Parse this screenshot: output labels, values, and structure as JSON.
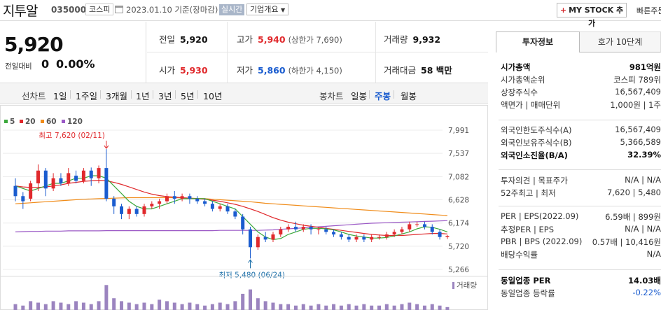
{
  "header": {
    "stock_name": "지투알",
    "stock_code": "035000",
    "market": "코스피",
    "date_text": "2023.01.10 기준(장마감)",
    "realtime": "실시간",
    "overview": "기업개요",
    "mystock_plus": "+",
    "mystock": "MY STOCK 추가",
    "quick": "빠른주문"
  },
  "price": {
    "current": "5,920",
    "change_label": "전일대비",
    "change_value": "0",
    "change_pct": "0.00%"
  },
  "stats": {
    "prev_label": "전일",
    "prev": "5,920",
    "high_label": "고가",
    "high": "5,940",
    "upper_limit": "(상한가 7,690)",
    "volume_label": "거래량",
    "volume": "9,932",
    "open_label": "시가",
    "open": "5,930",
    "low_label": "저가",
    "low": "5,860",
    "lower_limit": "(하한가 4,150)",
    "amount_label": "거래대금",
    "amount": "58 백만"
  },
  "periods": {
    "line_label": "선차트",
    "items": [
      "1일",
      "1주일",
      "3개월",
      "1년",
      "3년",
      "5년",
      "10년"
    ],
    "candle_label": "봉차트",
    "candles": [
      "일봉",
      "주봉",
      "월봉"
    ],
    "active_candle": "주봉"
  },
  "legend": [
    {
      "label": "5",
      "color": "#3ca93c"
    },
    {
      "label": "20",
      "color": "#e0292c"
    },
    {
      "label": "60",
      "color": "#f08c1a"
    },
    {
      "label": "120",
      "color": "#9b59c6"
    }
  ],
  "colors": {
    "up": "#e0292c",
    "down": "#1a5ccf",
    "volume": "#9b84bf"
  },
  "chart_data": {
    "type": "candlestick",
    "title": "",
    "ylim": [
      5266,
      7991
    ],
    "y_ticks": [
      "7,991",
      "7,537",
      "7,082",
      "6,628",
      "6,174",
      "5,720",
      "5,266"
    ],
    "y_tick_values": [
      7991,
      7537,
      7082,
      6628,
      6174,
      5720,
      5266
    ],
    "high_annotation": "최고 7,620 (02/11)",
    "low_annotation": "최저 5,480 (06/24)",
    "volume_label": "거래량",
    "candles": [
      [
        6900,
        6700,
        7050,
        6600
      ],
      [
        6700,
        6600,
        6780,
        6450
      ],
      [
        6650,
        6950,
        7000,
        6600
      ],
      [
        6950,
        7200,
        7320,
        6800
      ],
      [
        7200,
        6850,
        7250,
        6700
      ],
      [
        6850,
        7050,
        7150,
        6800
      ],
      [
        7050,
        6950,
        7150,
        6900
      ],
      [
        6950,
        7150,
        7250,
        6900
      ],
      [
        7100,
        7000,
        7200,
        6950
      ],
      [
        7000,
        7200,
        7250,
        6950
      ],
      [
        7200,
        7050,
        7260,
        6900
      ],
      [
        7050,
        7250,
        7300,
        6950
      ],
      [
        7250,
        6650,
        7620,
        6600
      ],
      [
        6650,
        6500,
        6700,
        6350
      ],
      [
        6500,
        6350,
        6550,
        6250
      ],
      [
        6350,
        6450,
        6500,
        6250
      ],
      [
        6450,
        6350,
        6500,
        6300
      ],
      [
        6350,
        6500,
        6550,
        6300
      ],
      [
        6500,
        6550,
        6600,
        6450
      ],
      [
        6550,
        6600,
        6650,
        6450
      ],
      [
        6600,
        6700,
        6750,
        6550
      ],
      [
        6700,
        6650,
        6800,
        6550
      ],
      [
        6650,
        6700,
        6750,
        6600
      ],
      [
        6700,
        6650,
        6750,
        6550
      ],
      [
        6650,
        6600,
        6700,
        6550
      ],
      [
        6600,
        6550,
        6650,
        6500
      ],
      [
        6550,
        6450,
        6600,
        6400
      ],
      [
        6450,
        6500,
        6550,
        6400
      ],
      [
        6500,
        6400,
        6550,
        6350
      ],
      [
        6400,
        6300,
        6450,
        6250
      ],
      [
        6300,
        6050,
        6350,
        5950
      ],
      [
        6050,
        5700,
        6100,
        5480
      ],
      [
        5700,
        5900,
        5950,
        5650
      ],
      [
        5900,
        5850,
        6000,
        5800
      ],
      [
        5850,
        5950,
        6000,
        5800
      ],
      [
        5950,
        6050,
        6100,
        5900
      ],
      [
        6050,
        6100,
        6150,
        6000
      ],
      [
        6100,
        6050,
        6200,
        6000
      ],
      [
        6050,
        6100,
        6150,
        6000
      ],
      [
        6100,
        6050,
        6150,
        5950
      ],
      [
        6050,
        6050,
        6100,
        5950
      ],
      [
        6050,
        6000,
        6100,
        5950
      ],
      [
        6000,
        5950,
        6050,
        5900
      ],
      [
        5950,
        5900,
        6000,
        5850
      ],
      [
        5900,
        5850,
        5950,
        5800
      ],
      [
        5850,
        5900,
        5950,
        5800
      ],
      [
        5900,
        5850,
        5950,
        5800
      ],
      [
        5850,
        5900,
        5950,
        5800
      ],
      [
        5900,
        5900,
        5950,
        5850
      ],
      [
        5900,
        5950,
        6000,
        5850
      ],
      [
        5950,
        6000,
        6050,
        5900
      ],
      [
        6000,
        6050,
        6100,
        5950
      ],
      [
        6050,
        6150,
        6200,
        6000
      ],
      [
        6150,
        6150,
        6200,
        6100
      ],
      [
        6150,
        6100,
        6200,
        6050
      ],
      [
        6100,
        6000,
        6150,
        5950
      ],
      [
        6000,
        5900,
        6050,
        5850
      ],
      [
        5900,
        5920,
        5940,
        5860
      ]
    ],
    "ma5": [
      6900,
      6850,
      6800,
      6850,
      6900,
      6950,
      6950,
      7000,
      7050,
      7050,
      7100,
      7100,
      7050,
      6900,
      6750,
      6600,
      6500,
      6450,
      6450,
      6500,
      6550,
      6600,
      6650,
      6650,
      6650,
      6650,
      6600,
      6550,
      6500,
      6450,
      6300,
      6150,
      6000,
      5900,
      5850,
      5870,
      5950,
      6000,
      6050,
      6070,
      6070,
      6060,
      6040,
      6000,
      5950,
      5920,
      5900,
      5880,
      5880,
      5890,
      5920,
      5960,
      6000,
      6060,
      6100,
      6090,
      6050,
      6000
    ],
    "ma20": [
      6900,
      6880,
      6870,
      6870,
      6880,
      6900,
      6920,
      6950,
      6970,
      6990,
      7000,
      7010,
      7000,
      6970,
      6930,
      6880,
      6830,
      6780,
      6740,
      6710,
      6690,
      6680,
      6670,
      6660,
      6650,
      6640,
      6620,
      6600,
      6570,
      6540,
      6500,
      6450,
      6400,
      6340,
      6280,
      6230,
      6190,
      6160,
      6130,
      6110,
      6090,
      6070,
      6050,
      6030,
      6010,
      5990,
      5970,
      5950,
      5940,
      5930,
      5930,
      5930,
      5940,
      5950,
      5960,
      5970,
      5970,
      5960
    ],
    "ma60": [
      6550,
      6560,
      6570,
      6580,
      6590,
      6600,
      6610,
      6620,
      6630,
      6640,
      6645,
      6650,
      6655,
      6660,
      6665,
      6670,
      6670,
      6670,
      6670,
      6670,
      6670,
      6670,
      6665,
      6660,
      6655,
      6650,
      6640,
      6630,
      6620,
      6610,
      6600,
      6590,
      6575,
      6560,
      6550,
      6540,
      6530,
      6520,
      6510,
      6500,
      6490,
      6480,
      6470,
      6460,
      6450,
      6440,
      6430,
      6420,
      6410,
      6400,
      6390,
      6380,
      6370,
      6360,
      6350,
      6340,
      6330,
      6320
    ],
    "ma120": [
      6000,
      6005,
      6010,
      6010,
      6015,
      6015,
      6015,
      6020,
      6020,
      6020,
      6020,
      6020,
      6025,
      6025,
      6025,
      6025,
      6025,
      6025,
      6025,
      6025,
      6025,
      6025,
      6025,
      6025,
      6025,
      6025,
      6025,
      6030,
      6030,
      6030,
      6030,
      6030,
      6030,
      6035,
      6040,
      6050,
      6060,
      6070,
      6080,
      6090,
      6100,
      6110,
      6120,
      6130,
      6140,
      6150,
      6160,
      6170,
      6175,
      6180,
      6185,
      6190,
      6195,
      6200,
      6205,
      6210,
      6215,
      6220
    ],
    "volume": [
      0.2,
      0.15,
      0.3,
      0.25,
      0.2,
      0.3,
      0.25,
      0.2,
      0.3,
      0.25,
      0.2,
      0.3,
      0.85,
      0.4,
      0.3,
      0.25,
      0.2,
      0.25,
      0.2,
      0.35,
      0.3,
      0.25,
      0.2,
      0.25,
      0.2,
      0.15,
      0.2,
      0.25,
      0.2,
      0.3,
      0.55,
      0.7,
      0.4,
      0.3,
      0.25,
      0.2,
      0.2,
      0.15,
      0.2,
      0.15,
      0.2,
      0.15,
      0.2,
      0.15,
      0.2,
      0.15,
      0.2,
      0.15,
      0.15,
      0.2,
      0.15,
      0.2,
      0.25,
      0.2,
      0.15,
      0.2,
      0.15,
      0.1
    ]
  },
  "right_panel": {
    "tab1": "투자정보",
    "tab2": "호가 10단계",
    "rows1": [
      {
        "k": "시가총액",
        "v": "981억원",
        "bold": true
      },
      {
        "k": "시가총액순위",
        "v": "코스피 789위"
      },
      {
        "k": "상장주식수",
        "v": "16,567,409"
      },
      {
        "k": "액면가 | 매매단위",
        "v": "1,000원 | 1주"
      }
    ],
    "rows2": [
      {
        "k": "외국인한도주식수(A)",
        "v": "16,567,409"
      },
      {
        "k": "외국인보유주식수(B)",
        "v": "5,366,589"
      },
      {
        "k": "외국인소진율(B/A)",
        "v": "32.39%",
        "bold": true
      }
    ],
    "rows3": [
      {
        "k": "투자의견 | 목표주가",
        "v": "N/A | N/A"
      },
      {
        "k": "52주최고 | 최저",
        "v": "7,620 | 5,480"
      }
    ],
    "rows4": [
      {
        "k": "PER | EPS(2022.09)",
        "v": "6.59배 | 899원"
      },
      {
        "k": "추정PER | EPS",
        "v": "N/A | N/A"
      },
      {
        "k": "PBR | BPS (2022.09)",
        "v": "0.57배 | 10,416원"
      },
      {
        "k": "배당수익률",
        "v": "N/A"
      }
    ],
    "rows5": [
      {
        "k": "동일업종 PER",
        "v": "14.03배",
        "bold": true
      },
      {
        "k": "동일업종 등락률",
        "v": "-0.22%"
      }
    ]
  }
}
